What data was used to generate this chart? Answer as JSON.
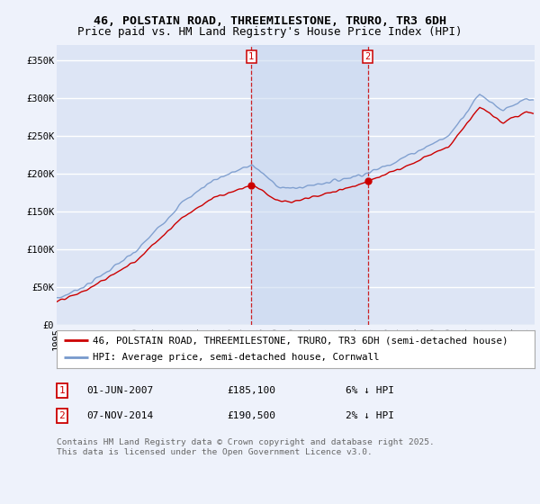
{
  "title_line1": "46, POLSTAIN ROAD, THREEMILESTONE, TRURO, TR3 6DH",
  "title_line2": "Price paid vs. HM Land Registry's House Price Index (HPI)",
  "ylabel_ticks": [
    "£0",
    "£50K",
    "£100K",
    "£150K",
    "£200K",
    "£250K",
    "£300K",
    "£350K"
  ],
  "ytick_values": [
    0,
    50000,
    100000,
    150000,
    200000,
    250000,
    300000,
    350000
  ],
  "ylim": [
    0,
    370000
  ],
  "xlim_start": 1995.0,
  "xlim_end": 2025.5,
  "background_color": "#eef2fb",
  "plot_bg_color": "#dde5f5",
  "grid_color": "#ffffff",
  "hpi_color": "#7799cc",
  "price_color": "#cc0000",
  "marker_color": "#cc0000",
  "vline_color": "#cc0000",
  "sale1_x": 2007.42,
  "sale1_y": 185100,
  "sale1_label": "1",
  "sale2_x": 2014.85,
  "sale2_y": 190500,
  "sale2_label": "2",
  "legend_line1": "46, POLSTAIN ROAD, THREEMILESTONE, TRURO, TR3 6DH (semi-detached house)",
  "legend_line2": "HPI: Average price, semi-detached house, Cornwall",
  "footnote": "Contains HM Land Registry data © Crown copyright and database right 2025.\nThis data is licensed under the Open Government Licence v3.0.",
  "title_fontsize": 9.5,
  "tick_fontsize": 7.5,
  "legend_fontsize": 7.8,
  "table_fontsize": 8.0,
  "footnote_fontsize": 6.8
}
